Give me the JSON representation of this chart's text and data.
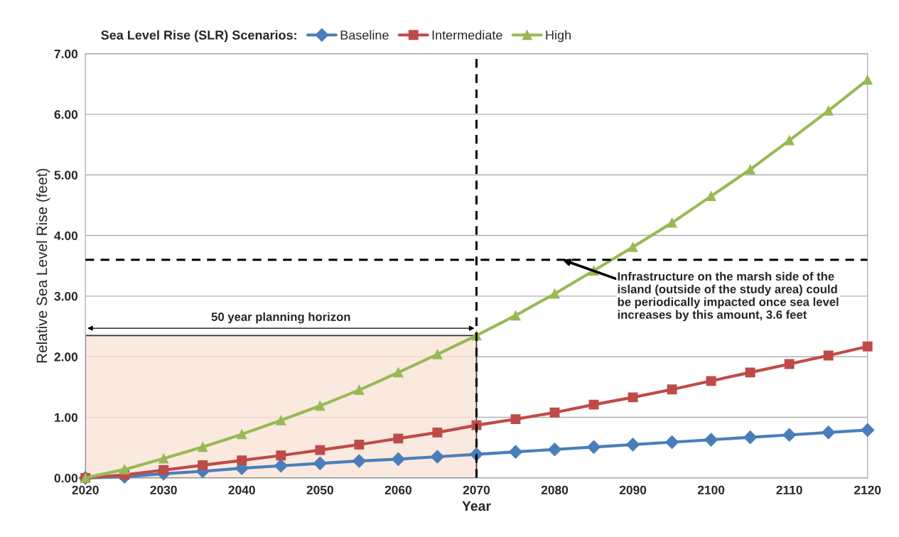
{
  "chart_data": {
    "type": "line",
    "xlabel": "Year",
    "ylabel": "Relative Sea Level Rise (feet)",
    "legend_title": "Sea Level Rise (SLR) Scenarios:",
    "x": [
      2020,
      2025,
      2030,
      2035,
      2040,
      2045,
      2050,
      2055,
      2060,
      2065,
      2070,
      2075,
      2080,
      2085,
      2090,
      2095,
      2100,
      2105,
      2110,
      2115,
      2120
    ],
    "series": [
      {
        "name": "Baseline",
        "color": "#4a7ebb",
        "marker": "diamond",
        "values": [
          0,
          0.02,
          0.07,
          0.11,
          0.16,
          0.2,
          0.24,
          0.28,
          0.31,
          0.35,
          0.39,
          0.43,
          0.47,
          0.51,
          0.55,
          0.59,
          0.63,
          0.67,
          0.71,
          0.75,
          0.79
        ]
      },
      {
        "name": "Intermediate",
        "color": "#be4b48",
        "marker": "square",
        "values": [
          0,
          0.05,
          0.13,
          0.21,
          0.29,
          0.37,
          0.46,
          0.55,
          0.65,
          0.75,
          0.87,
          0.97,
          1.08,
          1.21,
          1.33,
          1.46,
          1.6,
          1.74,
          1.88,
          2.02,
          2.17
        ]
      },
      {
        "name": "High",
        "color": "#98b954",
        "marker": "triangle",
        "values": [
          0,
          0.14,
          0.32,
          0.51,
          0.72,
          0.95,
          1.19,
          1.45,
          1.74,
          2.04,
          2.35,
          2.68,
          3.04,
          3.42,
          3.81,
          4.21,
          4.65,
          5.09,
          5.57,
          6.06,
          6.57
        ]
      }
    ],
    "xlim": [
      2020,
      2120
    ],
    "xticks": [
      2020,
      2030,
      2040,
      2050,
      2060,
      2070,
      2080,
      2090,
      2100,
      2110,
      2120
    ],
    "ylim": [
      0,
      7
    ],
    "yticks": [
      {
        "value": 0,
        "label": "0.00"
      },
      {
        "value": 1,
        "label": "1.00"
      },
      {
        "value": 2,
        "label": "2.00"
      },
      {
        "value": 3,
        "label": "3.00"
      },
      {
        "value": 4,
        "label": "4.00"
      },
      {
        "value": 5,
        "label": "5.00"
      },
      {
        "value": 6,
        "label": "6.00"
      },
      {
        "value": 7,
        "label": "7.00"
      }
    ],
    "ref_lines": [
      {
        "axis": "y",
        "value": 3.6,
        "color": "#000000",
        "line_style": "dashed"
      },
      {
        "axis": "x",
        "value": 2070,
        "color": "#000000",
        "line_style": "dashed"
      }
    ],
    "bands": [
      {
        "axis": "x",
        "from": 2020,
        "to": 2070,
        "label": "50 year planning horizon",
        "color": "#f8e4d8"
      }
    ],
    "annotations": [
      {
        "text": "Infrastructure on the marsh side of the\nisland (outside of the study area) could\nbe periodically impacted once sea level\nincreases by this amount, 3.6 feet",
        "x": 2081,
        "y": 3.6
      }
    ],
    "grid": "y",
    "legend": "top",
    "line_style": "solid"
  }
}
